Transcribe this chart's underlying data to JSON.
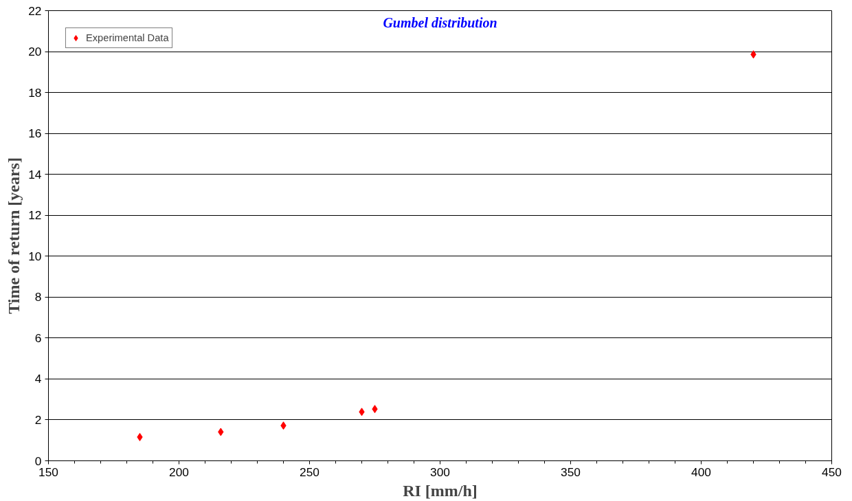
{
  "chart_data": {
    "type": "scatter",
    "title": "Gumbel distribution",
    "xlabel": "RI [mm/h]",
    "ylabel": "Time of return [years]",
    "x": [
      185,
      216,
      240,
      270,
      275,
      420
    ],
    "series": [
      {
        "name": "Experimental Data",
        "color": "#ff0000",
        "values": [
          1.16,
          1.41,
          1.72,
          2.39,
          2.53,
          19.86
        ]
      }
    ],
    "xlim": [
      150,
      450
    ],
    "xticks": [
      150,
      200,
      250,
      300,
      350,
      400,
      450
    ],
    "ylim": [
      0,
      22
    ],
    "yticks": [
      0,
      2,
      4,
      6,
      8,
      10,
      12,
      14,
      16,
      18,
      20,
      22
    ],
    "grid": "y",
    "legend": "top left",
    "marker": "diamond"
  }
}
